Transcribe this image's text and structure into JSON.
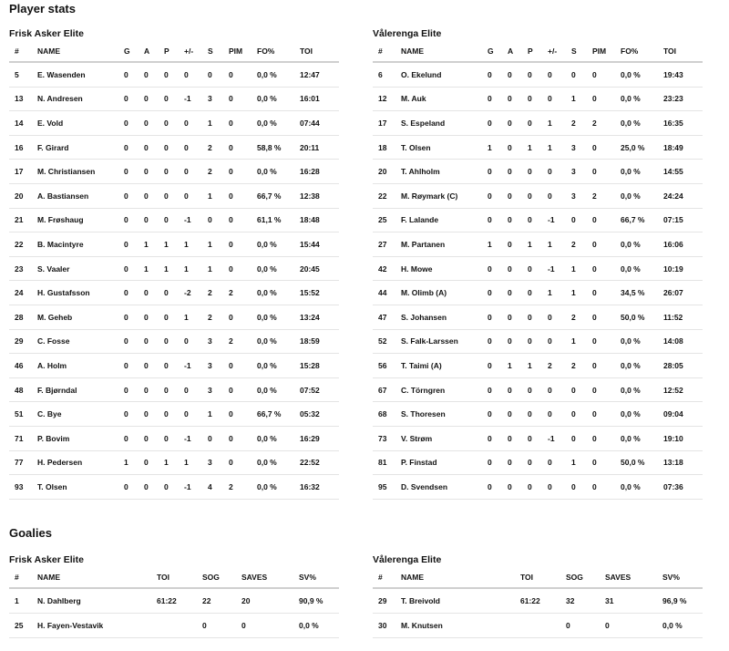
{
  "player_stats": {
    "title": "Player stats",
    "columns": [
      "#",
      "NAME",
      "G",
      "A",
      "P",
      "+/-",
      "S",
      "PIM",
      "FO%",
      "TOI"
    ],
    "teams": [
      {
        "name": "Frisk Asker Elite",
        "rows": [
          [
            "5",
            "E. Wasenden",
            "0",
            "0",
            "0",
            "0",
            "0",
            "0",
            "0,0 %",
            "12:47"
          ],
          [
            "13",
            "N. Andresen",
            "0",
            "0",
            "0",
            "-1",
            "3",
            "0",
            "0,0 %",
            "16:01"
          ],
          [
            "14",
            "E. Vold",
            "0",
            "0",
            "0",
            "0",
            "1",
            "0",
            "0,0 %",
            "07:44"
          ],
          [
            "16",
            "F. Girard",
            "0",
            "0",
            "0",
            "0",
            "2",
            "0",
            "58,8 %",
            "20:11"
          ],
          [
            "17",
            "M. Christiansen",
            "0",
            "0",
            "0",
            "0",
            "2",
            "0",
            "0,0 %",
            "16:28"
          ],
          [
            "20",
            "A. Bastiansen",
            "0",
            "0",
            "0",
            "0",
            "1",
            "0",
            "66,7 %",
            "12:38"
          ],
          [
            "21",
            "M. Frøshaug",
            "0",
            "0",
            "0",
            "-1",
            "0",
            "0",
            "61,1 %",
            "18:48"
          ],
          [
            "22",
            "B. Macintyre",
            "0",
            "1",
            "1",
            "1",
            "1",
            "0",
            "0,0 %",
            "15:44"
          ],
          [
            "23",
            "S. Vaaler",
            "0",
            "1",
            "1",
            "1",
            "1",
            "0",
            "0,0 %",
            "20:45"
          ],
          [
            "24",
            "H. Gustafsson",
            "0",
            "0",
            "0",
            "-2",
            "2",
            "2",
            "0,0 %",
            "15:52"
          ],
          [
            "28",
            "M. Geheb",
            "0",
            "0",
            "0",
            "1",
            "2",
            "0",
            "0,0 %",
            "13:24"
          ],
          [
            "29",
            "C. Fosse",
            "0",
            "0",
            "0",
            "0",
            "3",
            "2",
            "0,0 %",
            "18:59"
          ],
          [
            "46",
            "A. Holm",
            "0",
            "0",
            "0",
            "-1",
            "3",
            "0",
            "0,0 %",
            "15:28"
          ],
          [
            "48",
            "F. Bjørndal",
            "0",
            "0",
            "0",
            "0",
            "3",
            "0",
            "0,0 %",
            "07:52"
          ],
          [
            "51",
            "C. Bye",
            "0",
            "0",
            "0",
            "0",
            "1",
            "0",
            "66,7 %",
            "05:32"
          ],
          [
            "71",
            "P. Bovim",
            "0",
            "0",
            "0",
            "-1",
            "0",
            "0",
            "0,0 %",
            "16:29"
          ],
          [
            "77",
            "H. Pedersen",
            "1",
            "0",
            "1",
            "1",
            "3",
            "0",
            "0,0 %",
            "22:52"
          ],
          [
            "93",
            "T. Olsen",
            "0",
            "0",
            "0",
            "-1",
            "4",
            "2",
            "0,0 %",
            "16:32"
          ]
        ]
      },
      {
        "name": "Vålerenga Elite",
        "rows": [
          [
            "6",
            "O. Ekelund",
            "0",
            "0",
            "0",
            "0",
            "0",
            "0",
            "0,0 %",
            "19:43"
          ],
          [
            "12",
            "M. Auk",
            "0",
            "0",
            "0",
            "0",
            "1",
            "0",
            "0,0 %",
            "23:23"
          ],
          [
            "17",
            "S. Espeland",
            "0",
            "0",
            "0",
            "1",
            "2",
            "2",
            "0,0 %",
            "16:35"
          ],
          [
            "18",
            "T. Olsen",
            "1",
            "0",
            "1",
            "1",
            "3",
            "0",
            "25,0 %",
            "18:49"
          ],
          [
            "20",
            "T. Ahlholm",
            "0",
            "0",
            "0",
            "0",
            "3",
            "0",
            "0,0 %",
            "14:55"
          ],
          [
            "22",
            "M. Røymark (C)",
            "0",
            "0",
            "0",
            "0",
            "3",
            "2",
            "0,0 %",
            "24:24"
          ],
          [
            "25",
            "F. Lalande",
            "0",
            "0",
            "0",
            "-1",
            "0",
            "0",
            "66,7 %",
            "07:15"
          ],
          [
            "27",
            "M. Partanen",
            "1",
            "0",
            "1",
            "1",
            "2",
            "0",
            "0,0 %",
            "16:06"
          ],
          [
            "42",
            "H. Mowe",
            "0",
            "0",
            "0",
            "-1",
            "1",
            "0",
            "0,0 %",
            "10:19"
          ],
          [
            "44",
            "M. Olimb (A)",
            "0",
            "0",
            "0",
            "1",
            "1",
            "0",
            "34,5 %",
            "26:07"
          ],
          [
            "47",
            "S. Johansen",
            "0",
            "0",
            "0",
            "0",
            "2",
            "0",
            "50,0 %",
            "11:52"
          ],
          [
            "52",
            "S. Falk-Larssen",
            "0",
            "0",
            "0",
            "0",
            "1",
            "0",
            "0,0 %",
            "14:08"
          ],
          [
            "56",
            "T. Taimi (A)",
            "0",
            "1",
            "1",
            "2",
            "2",
            "0",
            "0,0 %",
            "28:05"
          ],
          [
            "67",
            "C. Törngren",
            "0",
            "0",
            "0",
            "0",
            "0",
            "0",
            "0,0 %",
            "12:52"
          ],
          [
            "68",
            "S. Thoresen",
            "0",
            "0",
            "0",
            "0",
            "0",
            "0",
            "0,0 %",
            "09:04"
          ],
          [
            "73",
            "V. Strøm",
            "0",
            "0",
            "0",
            "-1",
            "0",
            "0",
            "0,0 %",
            "19:10"
          ],
          [
            "81",
            "P. Finstad",
            "0",
            "0",
            "0",
            "0",
            "1",
            "0",
            "50,0 %",
            "13:18"
          ],
          [
            "95",
            "D. Svendsen",
            "0",
            "0",
            "0",
            "0",
            "0",
            "0",
            "0,0 %",
            "07:36"
          ]
        ]
      }
    ]
  },
  "goalies": {
    "title": "Goalies",
    "columns": [
      "#",
      "NAME",
      "TOI",
      "SOG",
      "SAVES",
      "SV%"
    ],
    "teams": [
      {
        "name": "Frisk Asker Elite",
        "rows": [
          [
            "1",
            "N. Dahlberg",
            "61:22",
            "22",
            "20",
            "90,9 %"
          ],
          [
            "25",
            "H. Fayen-Vestavik",
            "",
            "0",
            "0",
            "0,0 %"
          ]
        ]
      },
      {
        "name": "Vålerenga Elite",
        "rows": [
          [
            "29",
            "T. Breivold",
            "61:22",
            "32",
            "31",
            "96,9 %"
          ],
          [
            "30",
            "M. Knutsen",
            "",
            "0",
            "0",
            "0,0 %"
          ]
        ]
      }
    ]
  }
}
